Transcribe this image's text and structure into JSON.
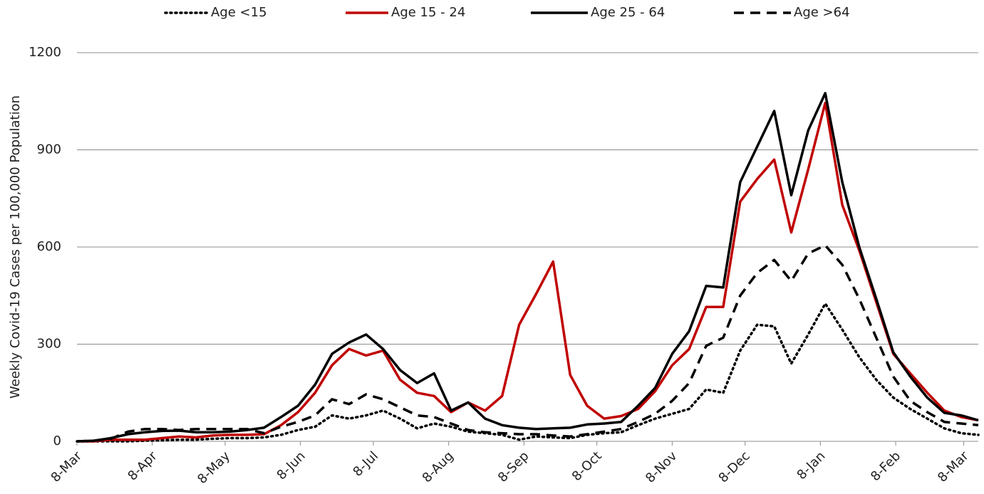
{
  "chart_data": {
    "type": "line",
    "y_label": "Weekly Covid-19 Cases per 100,000 Population",
    "x": [
      0,
      7,
      14,
      21,
      28,
      35,
      42,
      49,
      56,
      63,
      70,
      77,
      84,
      91,
      98,
      105,
      112,
      119,
      126,
      133,
      140,
      147,
      154,
      161,
      168,
      175,
      182,
      189,
      196,
      203,
      210,
      217,
      224,
      231,
      238,
      245,
      252,
      259,
      266,
      273,
      280,
      287,
      294,
      301,
      308,
      315,
      322,
      329,
      336,
      343,
      350,
      357,
      364,
      371
    ],
    "xlim": [
      0,
      371
    ],
    "xticks": [
      {
        "value": 0,
        "label": "8-Mar"
      },
      {
        "value": 31,
        "label": "8-Apr"
      },
      {
        "value": 61,
        "label": "8-May"
      },
      {
        "value": 92,
        "label": "8-Jun"
      },
      {
        "value": 122,
        "label": "8-Jul"
      },
      {
        "value": 153,
        "label": "8-Aug"
      },
      {
        "value": 184,
        "label": "8-Sep"
      },
      {
        "value": 214,
        "label": "8-Oct"
      },
      {
        "value": 245,
        "label": "8-Nov"
      },
      {
        "value": 275,
        "label": "8-Dec"
      },
      {
        "value": 306,
        "label": "8-Jan"
      },
      {
        "value": 337,
        "label": "8-Feb"
      },
      {
        "value": 365,
        "label": "8-Mar"
      }
    ],
    "ylim": [
      0,
      1200
    ],
    "yticks": [
      0,
      300,
      600,
      900,
      1200
    ],
    "grid": true,
    "legend": "top",
    "series": [
      {
        "name": "Age <15",
        "color": "#000000",
        "dash": "dotted",
        "values": [
          0,
          0,
          0,
          0,
          2,
          3,
          5,
          5,
          8,
          10,
          10,
          12,
          20,
          35,
          45,
          80,
          70,
          80,
          95,
          70,
          40,
          55,
          45,
          30,
          25,
          20,
          5,
          15,
          12,
          10,
          20,
          25,
          28,
          50,
          70,
          85,
          100,
          160,
          150,
          280,
          360,
          355,
          240,
          330,
          425,
          345,
          260,
          190,
          135,
          100,
          70,
          40,
          25,
          20
        ]
      },
      {
        "name": "Age 15 - 24",
        "color": "#c00000",
        "dash": "solid",
        "values": [
          0,
          0,
          5,
          5,
          5,
          10,
          15,
          12,
          18,
          20,
          20,
          22,
          50,
          90,
          150,
          235,
          285,
          265,
          280,
          190,
          150,
          140,
          90,
          120,
          95,
          140,
          360,
          455,
          555,
          205,
          110,
          70,
          78,
          100,
          155,
          235,
          285,
          415,
          415,
          740,
          810,
          870,
          645,
          840,
          1045,
          730,
          590,
          430,
          270,
          210,
          150,
          95,
          75,
          65
        ]
      },
      {
        "name": "Age 25 - 64",
        "color": "#000000",
        "dash": "solid",
        "values": [
          0,
          2,
          10,
          22,
          28,
          32,
          33,
          28,
          28,
          30,
          35,
          42,
          75,
          110,
          175,
          270,
          305,
          330,
          285,
          220,
          180,
          210,
          95,
          120,
          70,
          50,
          42,
          38,
          40,
          42,
          52,
          55,
          60,
          110,
          165,
          270,
          340,
          480,
          475,
          800,
          910,
          1020,
          760,
          960,
          1075,
          800,
          600,
          440,
          275,
          200,
          135,
          88,
          80,
          65
        ]
      },
      {
        "name": "Age >64",
        "color": "#000000",
        "dash": "dashed",
        "values": [
          0,
          2,
          8,
          30,
          38,
          38,
          35,
          38,
          38,
          38,
          38,
          25,
          45,
          60,
          80,
          130,
          115,
          145,
          130,
          105,
          80,
          75,
          55,
          35,
          28,
          25,
          22,
          22,
          18,
          15,
          22,
          30,
          38,
          60,
          85,
          125,
          180,
          295,
          320,
          450,
          520,
          560,
          495,
          580,
          605,
          545,
          440,
          320,
          200,
          125,
          90,
          60,
          55,
          50
        ]
      }
    ]
  }
}
